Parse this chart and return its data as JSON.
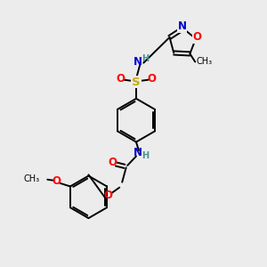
{
  "background_color": "#ececec",
  "atom_colors": {
    "C": "#000000",
    "N": "#0000cd",
    "O": "#ff0000",
    "S": "#ccaa00",
    "H": "#4a9090"
  },
  "bond_color": "#000000",
  "white_bg": "#ffffff"
}
